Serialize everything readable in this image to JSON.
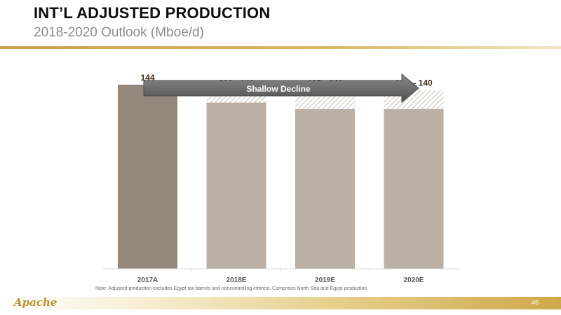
{
  "slide": {
    "title": "INT’L ADJUSTED PRODUCTION",
    "subtitle": "2018-2020 Outlook (Mboe/d)",
    "note": "Note: Adjusted production excludes Egypt tax barrels and noncontrolling interest. Comprises North Sea and Egypt production.",
    "logo": "Apache",
    "page_number": "46"
  },
  "chart_data": {
    "type": "bar",
    "categories": [
      "2017A",
      "2018E",
      "2019E",
      "2020E"
    ],
    "bars": [
      {
        "category": "2017A",
        "low": 144,
        "high": 144,
        "label": "144",
        "kind": "actual"
      },
      {
        "category": "2018E",
        "low": 130,
        "high": 140,
        "label": "130 - 140",
        "kind": "estimate"
      },
      {
        "category": "2019E",
        "low": 125,
        "high": 140,
        "label": "125 - 140",
        "kind": "estimate"
      },
      {
        "category": "2020E",
        "low": 125,
        "high": 140,
        "label": "125 – 140",
        "kind": "estimate"
      }
    ],
    "ylim": [
      0,
      150
    ],
    "grid": false,
    "annotation": {
      "text": "Shallow Decline"
    },
    "colors": {
      "actual": "#95877a",
      "estimate": "#bcb0a5",
      "hatch": "#a39787",
      "label": "#3d2a14",
      "arrow": "#6b6b6b",
      "gold": "#c9a24a"
    }
  }
}
